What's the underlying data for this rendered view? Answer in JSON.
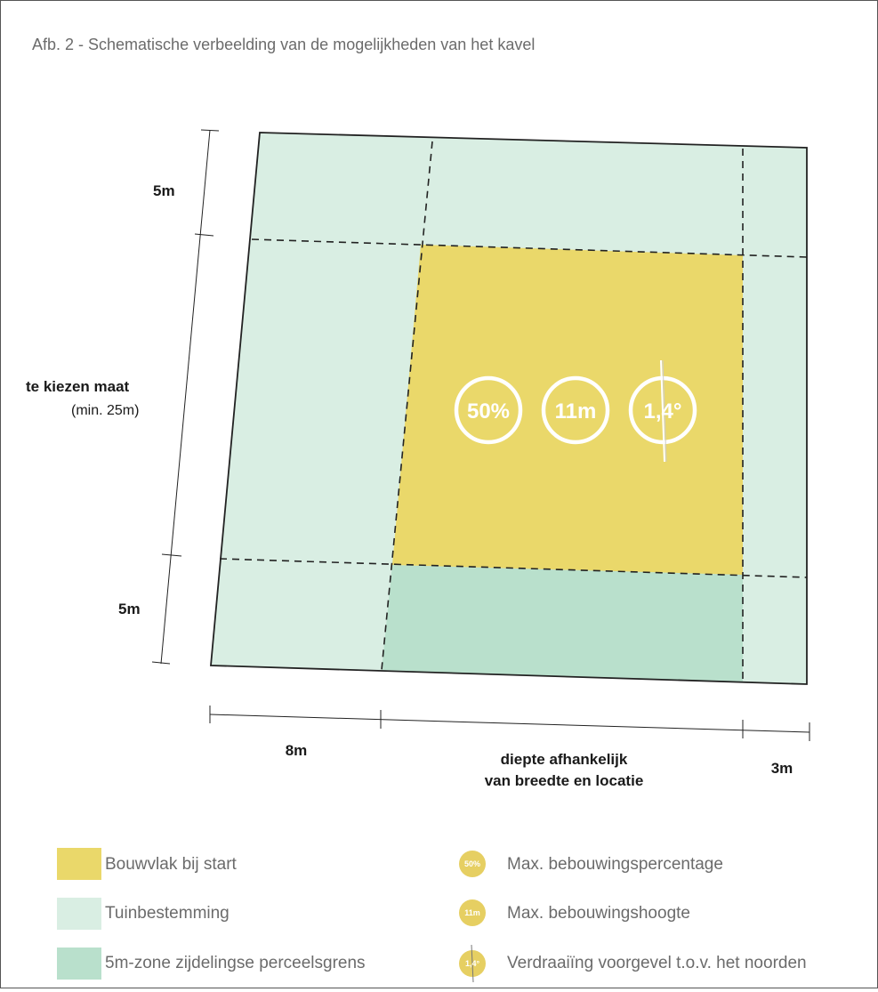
{
  "title": "Afb. 2 - Schematische verbeelding van de mogelijkheden van het kavel",
  "colors": {
    "bouwvlak": "#ead86a",
    "tuin": "#d9eee3",
    "zone5m": "#b9e0cc",
    "badge": "#e6cf62"
  },
  "dimensions": {
    "left_top": "5m",
    "left_middle_bold": "te kiezen maat",
    "left_middle_normal": "(min. 25m)",
    "left_bottom": "5m",
    "bottom_left": "8m",
    "bottom_middle_line1": "diepte afhankelijk",
    "bottom_middle_line2": "van breedte en locatie",
    "bottom_right": "3m"
  },
  "badges": {
    "percentage": "50%",
    "height": "11m",
    "rotation": "1,4°"
  },
  "legend": {
    "bouwvlak": "Bouwvlak bij start",
    "tuin": "Tuinbestemming",
    "zone5m": "5m-zone zijdelingse perceelsgrens",
    "percentage": "Max. bebouwingspercentage",
    "height": "Max. bebouwingshoogte",
    "rotation": "Verdraaiïng voorgevel t.o.v. het noorden"
  }
}
